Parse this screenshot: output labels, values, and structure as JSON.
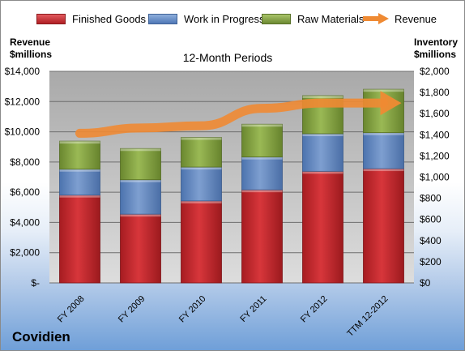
{
  "legend": {
    "finished": "Finished Goods",
    "wip": "Work in Progress",
    "raw": "Raw Materials",
    "revenue": "Revenue"
  },
  "axes": {
    "left_title_1": "Revenue",
    "left_title_2": "$millions",
    "right_title_1": "Inventory",
    "right_title_2": "$millions"
  },
  "plot_title": "12-Month Periods",
  "company": "Covidien",
  "chart_data": {
    "type": "bar",
    "stacked": true,
    "title": "12-Month Periods",
    "categories": [
      "FY 2008",
      "FY 2009",
      "FY 2010",
      "FY 2011",
      "FY 2012",
      "TTM 12-2012"
    ],
    "series": [
      {
        "name": "Finished Goods",
        "axis": "right",
        "color": "#c0262b",
        "values": [
          830,
          650,
          775,
          880,
          1055,
          1080
        ]
      },
      {
        "name": "Work in Progress",
        "axis": "right",
        "color": "#5f85bf",
        "values": [
          245,
          325,
          320,
          310,
          355,
          340
        ]
      },
      {
        "name": "Raw Materials",
        "axis": "right",
        "color": "#7d9c3c",
        "values": [
          265,
          295,
          280,
          310,
          360,
          410
        ]
      },
      {
        "name": "Revenue",
        "axis": "left",
        "type": "line",
        "color": "#ef8a33",
        "values": [
          9900,
          10250,
          10400,
          11550,
          11900,
          11900
        ]
      }
    ],
    "left_axis": {
      "title": "Revenue $millions",
      "ylim": [
        0,
        14000
      ],
      "ticks": [
        "$-",
        "$2,000",
        "$4,000",
        "$6,000",
        "$8,000",
        "$10,000",
        "$12,000",
        "$14,000"
      ]
    },
    "right_axis": {
      "title": "Inventory $millions",
      "ylim": [
        0,
        2000
      ],
      "ticks": [
        "$0",
        "$200",
        "$400",
        "$600",
        "$800",
        "$1,000",
        "$1,200",
        "$1,400",
        "$1,600",
        "$1,800",
        "$2,000"
      ]
    },
    "grid": true,
    "legend_position": "top"
  }
}
